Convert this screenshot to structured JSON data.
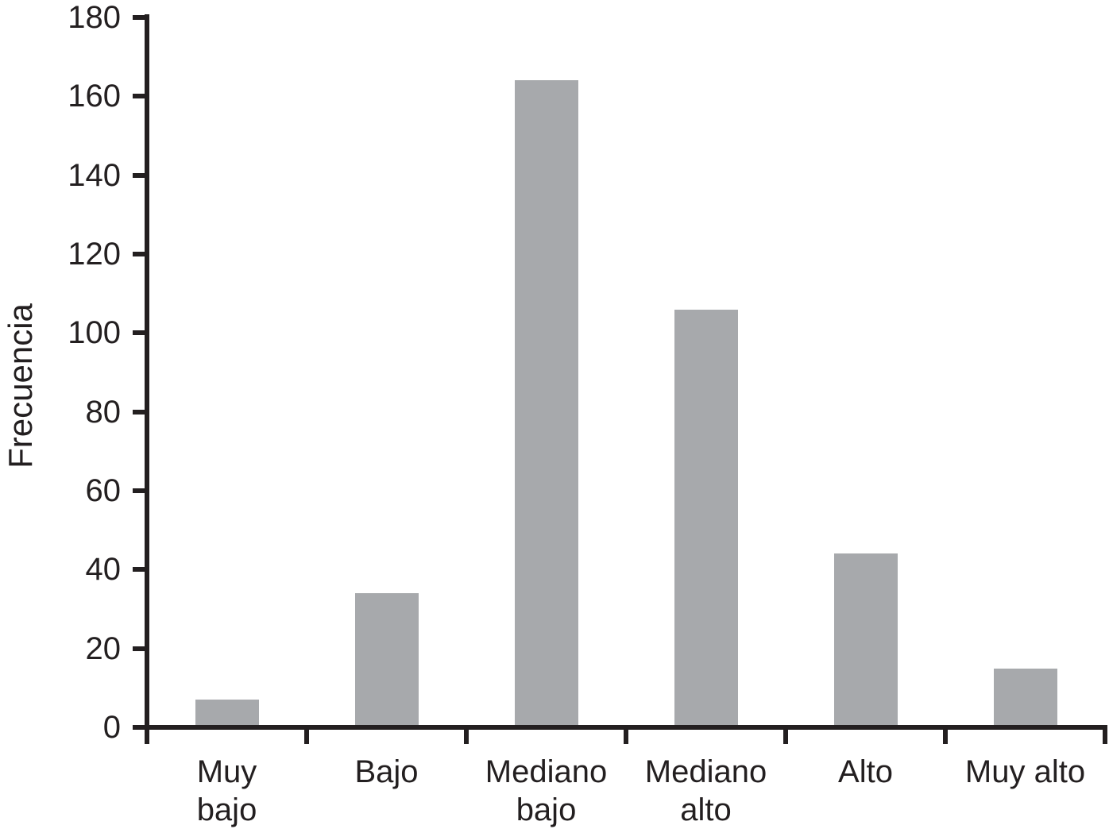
{
  "figure": {
    "background": "#ffffff",
    "bar_color": "#a7a9ac",
    "axis_color": "#231f20",
    "text_color": "#231f20"
  },
  "chart_data": {
    "type": "bar",
    "title": "",
    "xlabel": "",
    "ylabel": "Frecuencia",
    "categories": [
      "Muy bajo",
      "Bajo",
      "Mediano bajo",
      "Mediano alto",
      "Alto",
      "Muy alto"
    ],
    "category_label_lines": [
      [
        "Muy",
        "bajo"
      ],
      [
        "Bajo"
      ],
      [
        "Mediano",
        "bajo"
      ],
      [
        "Mediano",
        "alto"
      ],
      [
        "Alto"
      ],
      [
        "Muy alto"
      ]
    ],
    "values": [
      7,
      34,
      164,
      106,
      44,
      15
    ],
    "ylim": [
      0,
      180
    ],
    "yticks": [
      0,
      20,
      40,
      60,
      80,
      100,
      120,
      140,
      160,
      180
    ],
    "grid": false,
    "legend": "none",
    "bar_orientation": "vertical"
  }
}
